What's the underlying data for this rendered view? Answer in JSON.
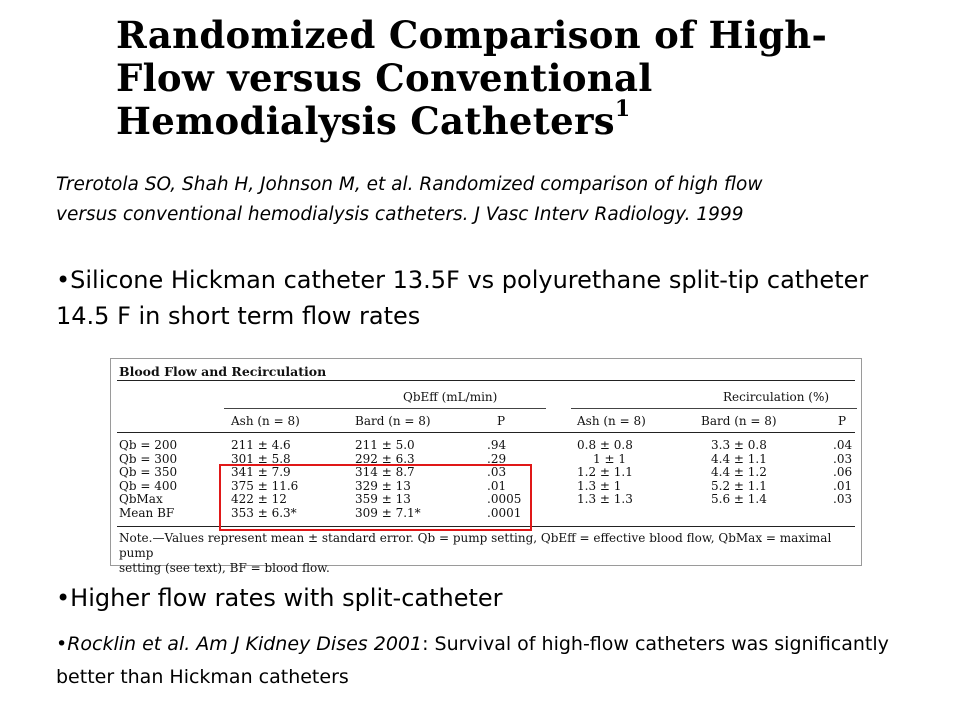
{
  "slide": {
    "title_line1": "Randomized Comparison of High-",
    "title_line2": "Flow versus Conventional",
    "title_line3": "Hemodialysis Catheters",
    "title_sup": "1",
    "citation_line1": "Trerotola SO, Shah H, Johnson M, et al. Randomized comparison of high flow",
    "citation_line2": "versus conventional hemodialysis catheters. J Vasc Interv Radiology. 1999",
    "bullet1": "•Silicone Hickman catheter 13.5F vs polyurethane split-tip catheter  14.5 F in short term flow rates",
    "bullet2": "•Higher flow rates with split-catheter",
    "bullet3_italic": "•Rocklin et al. Am J Kidney Dises 2001",
    "bullet3_rest": ": Survival of high-flow catheters was significantly better than Hickman catheters"
  },
  "table": {
    "caption": "Blood Flow and Recirculation",
    "group_left": "QbEff (mL/min)",
    "group_right": "Recirculation (%)",
    "col_ash": "Ash (n = 8)",
    "col_bard": "Bard (n = 8)",
    "col_p": "P",
    "col_ash2": "Ash (n = 8)",
    "col_bard2": "Bard (n = 8)",
    "col_p2": "P",
    "rows": [
      {
        "label": "Qb = 200",
        "ash": "211 ± 4.6",
        "bard": "211 ± 5.0",
        "p": ".94",
        "ash2": "0.8 ± 0.8",
        "bard2": "3.3 ± 0.8",
        "p2": ".04"
      },
      {
        "label": "Qb = 300",
        "ash": "301 ± 5.8",
        "bard": "292 ± 6.3",
        "p": ".29",
        "ash2": "1 ± 1",
        "bard2": "4.4 ± 1.1",
        "p2": ".03"
      },
      {
        "label": "Qb = 350",
        "ash": "341 ± 7.9",
        "bard": "314 ± 8.7",
        "p": ".03",
        "ash2": "1.2 ± 1.1",
        "bard2": "4.4 ± 1.2",
        "p2": ".06"
      },
      {
        "label": "Qb = 400",
        "ash": "375 ± 11.6",
        "bard": "329 ± 13",
        "p": ".01",
        "ash2": "1.3 ± 1",
        "bard2": "5.2 ± 1.1",
        "p2": ".01"
      },
      {
        "label": "QbMax",
        "ash": "422 ± 12",
        "bard": "359 ± 13",
        "p": ".0005",
        "ash2": "1.3 ± 1.3",
        "bard2": "5.6 ± 1.4",
        "p2": ".03"
      },
      {
        "label": "Mean BF",
        "ash": "353 ± 6.3*",
        "bard": "309 ± 7.1*",
        "p": ".0001",
        "ash2": "",
        "bard2": "",
        "p2": ""
      }
    ],
    "note_line1": "Note.—Values represent mean ± standard error. Qb = pump setting, QbEff = effective blood flow, QbMax = maximal pump",
    "note_line2": "setting (see text), BF = blood flow."
  }
}
